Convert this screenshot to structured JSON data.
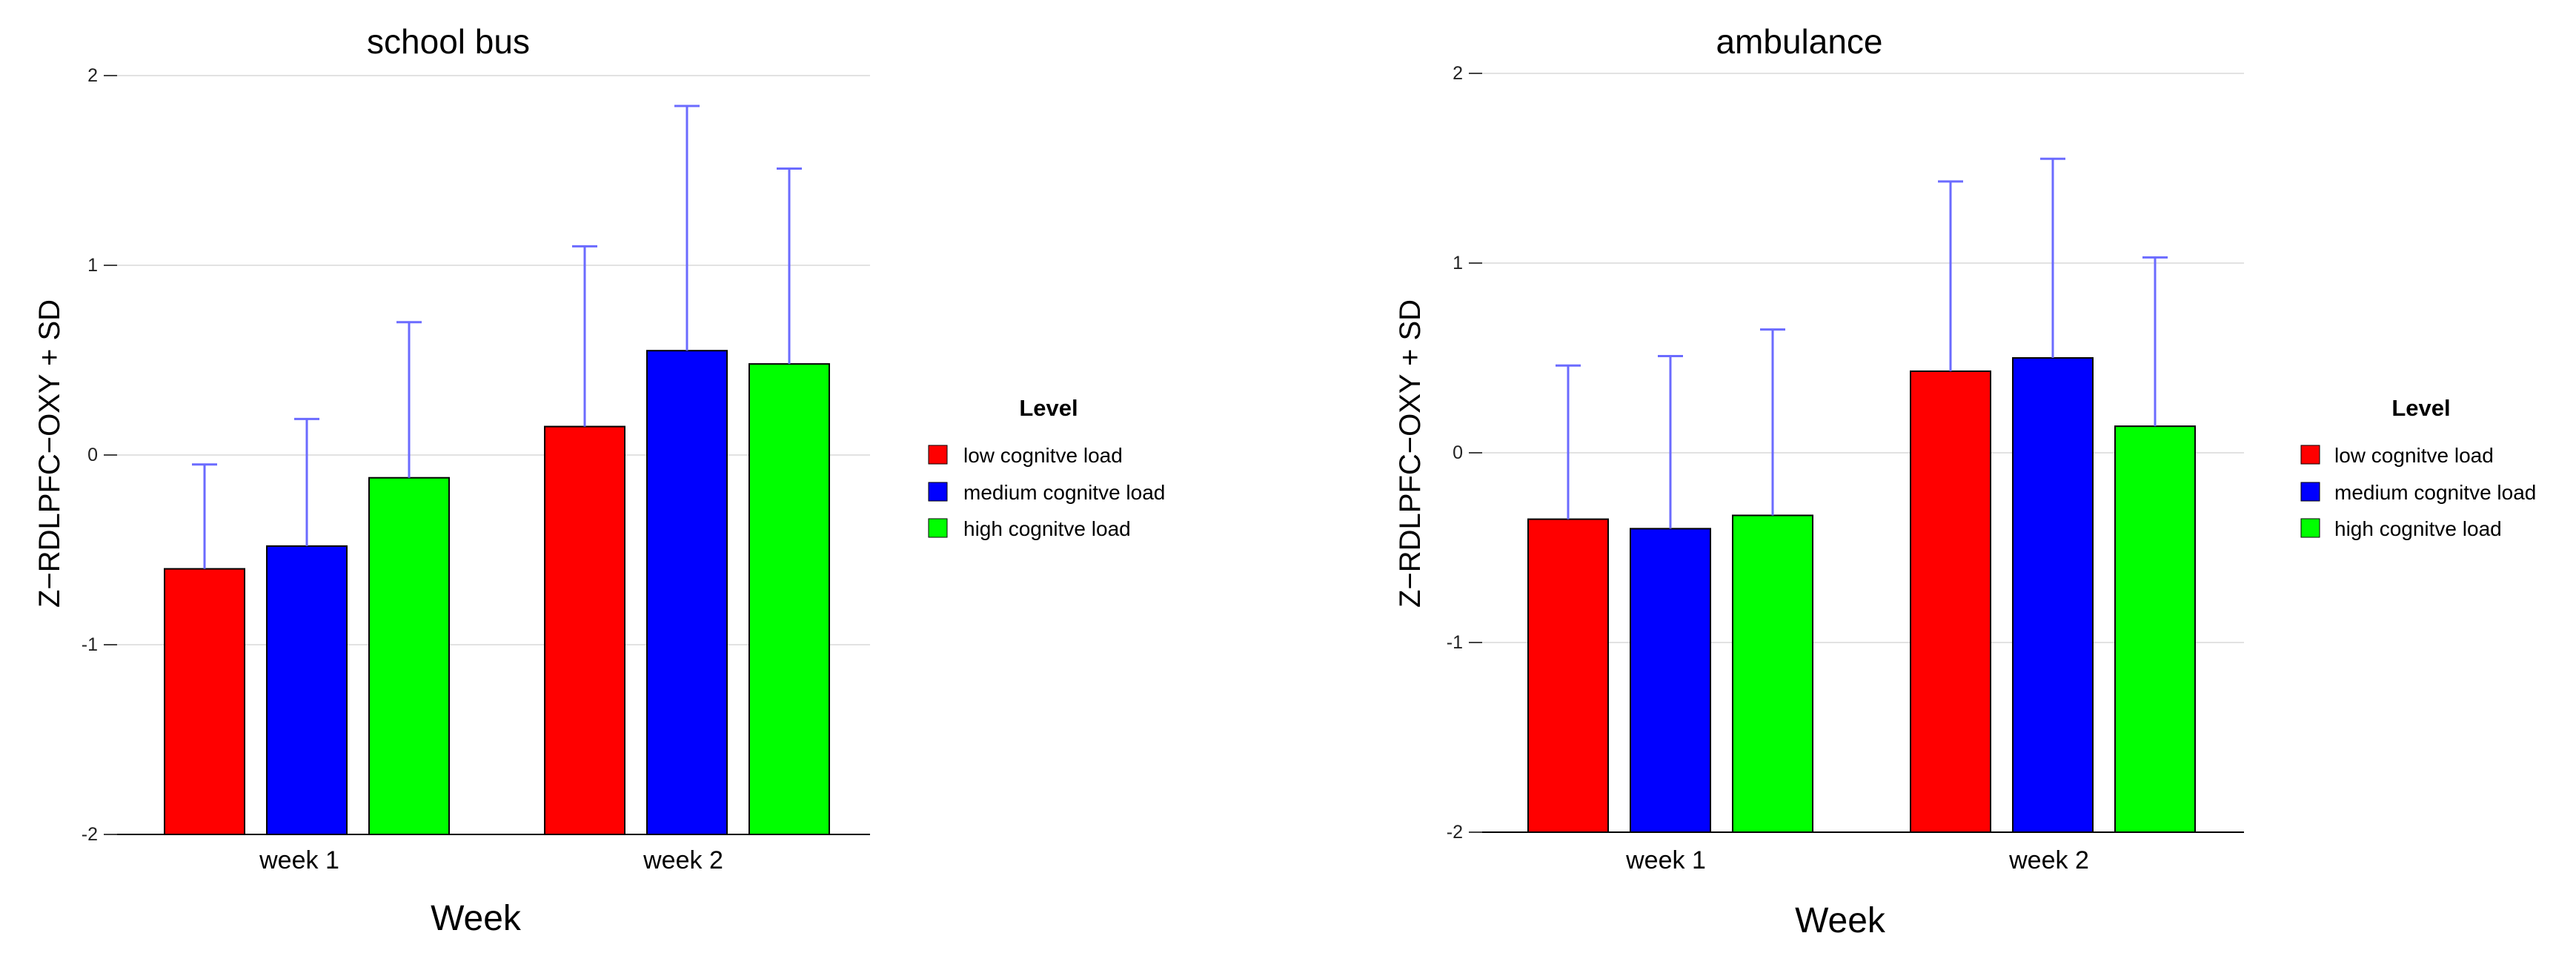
{
  "figure": {
    "xlabel": "Week",
    "ylabel": "Z−RDLPFC−OXY + SD",
    "legend_title": "Level",
    "colors": {
      "low": "#ff0000",
      "medium": "#0000ff",
      "high": "#00ff00",
      "error_bar": "#6b6bff"
    }
  },
  "chart_data": [
    {
      "type": "bar",
      "title": "school bus",
      "xlabel": "Week",
      "ylabel": "Z−RDLPFC−OXY + SD",
      "ylim": [
        -2,
        2
      ],
      "yticks": [
        "-2",
        "-1",
        "0",
        "1",
        "2"
      ],
      "categories": [
        "week 1",
        "week 2"
      ],
      "legend_title": "Level",
      "series": [
        {
          "name": "low cognitve load",
          "color": "#ff0000",
          "values": [
            -0.6,
            0.15
          ],
          "sd": [
            0.55,
            0.95
          ]
        },
        {
          "name": "medium cognitve load",
          "color": "#0000ff",
          "values": [
            -0.48,
            0.55
          ],
          "sd": [
            0.67,
            1.29
          ]
        },
        {
          "name": "high cognitve load",
          "color": "#00ff00",
          "values": [
            -0.12,
            0.48
          ],
          "sd": [
            0.82,
            1.03
          ]
        }
      ]
    },
    {
      "type": "bar",
      "title": "ambulance",
      "xlabel": "Week",
      "ylabel": "Z−RDLPFC−OXY + SD",
      "ylim": [
        -2,
        2
      ],
      "yticks": [
        "-2",
        "-1",
        "0",
        "1",
        "2"
      ],
      "categories": [
        "week 1",
        "week 2"
      ],
      "legend_title": "Level",
      "series": [
        {
          "name": "low cognitve load",
          "color": "#ff0000",
          "values": [
            -0.35,
            0.43
          ],
          "sd": [
            0.81,
            1.0
          ]
        },
        {
          "name": "medium cognitve load",
          "color": "#0000ff",
          "values": [
            -0.4,
            0.5
          ],
          "sd": [
            0.91,
            1.05
          ]
        },
        {
          "name": "high cognitve load",
          "color": "#00ff00",
          "values": [
            -0.33,
            0.14
          ],
          "sd": [
            0.98,
            0.89
          ]
        }
      ]
    }
  ]
}
